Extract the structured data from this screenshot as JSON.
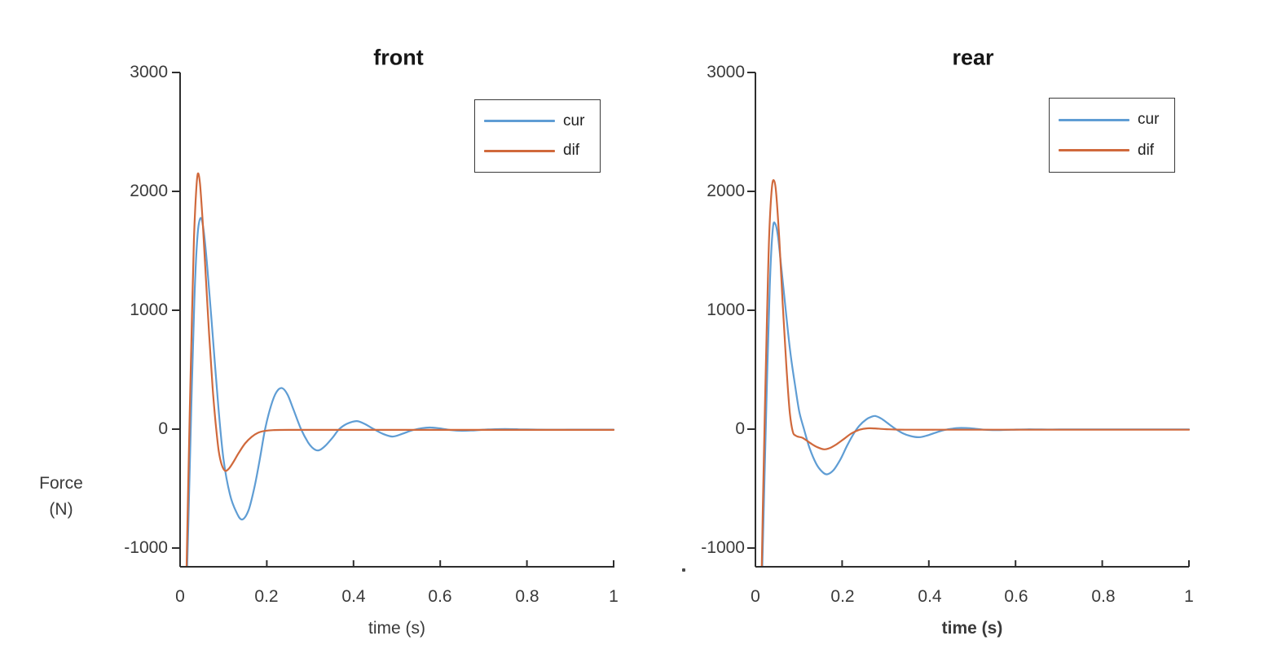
{
  "shared": {
    "ylabel_lines": [
      "Force",
      "(N)"
    ],
    "axis_color": "#2e2e2e",
    "background": "#ffffff"
  },
  "chart_data": [
    {
      "type": "line",
      "title": "front",
      "xlabel": "time (s)",
      "ylabel": "Force (N)",
      "xlim": [
        0,
        1
      ],
      "ylim": [
        -1160,
        3000
      ],
      "grid": false,
      "legend_position": "upper right",
      "x_tick_labels": [
        "0",
        "0.2",
        "0.4",
        "0.6",
        "0.8",
        "1"
      ],
      "y_tick_labels": [
        "3000",
        "2000",
        "1000",
        "0",
        "-1000"
      ],
      "series": [
        {
          "name": "cur",
          "color": "#5F9DD4",
          "points": [
            [
              0.012,
              -1700
            ],
            [
              0.019,
              -800
            ],
            [
              0.026,
              200
            ],
            [
              0.033,
              1100
            ],
            [
              0.04,
              1620
            ],
            [
              0.047,
              1775
            ],
            [
              0.054,
              1680
            ],
            [
              0.063,
              1350
            ],
            [
              0.075,
              800
            ],
            [
              0.088,
              200
            ],
            [
              0.1,
              -250
            ],
            [
              0.115,
              -550
            ],
            [
              0.13,
              -700
            ],
            [
              0.143,
              -760
            ],
            [
              0.158,
              -680
            ],
            [
              0.172,
              -480
            ],
            [
              0.185,
              -230
            ],
            [
              0.196,
              0
            ],
            [
              0.21,
              200
            ],
            [
              0.222,
              310
            ],
            [
              0.235,
              345
            ],
            [
              0.248,
              290
            ],
            [
              0.262,
              160
            ],
            [
              0.279,
              0
            ],
            [
              0.295,
              -110
            ],
            [
              0.308,
              -165
            ],
            [
              0.32,
              -178
            ],
            [
              0.335,
              -140
            ],
            [
              0.352,
              -70
            ],
            [
              0.367,
              0
            ],
            [
              0.385,
              45
            ],
            [
              0.407,
              68
            ],
            [
              0.425,
              45
            ],
            [
              0.447,
              0
            ],
            [
              0.468,
              -40
            ],
            [
              0.49,
              -62
            ],
            [
              0.512,
              -40
            ],
            [
              0.535,
              -10
            ],
            [
              0.558,
              8
            ],
            [
              0.578,
              14
            ],
            [
              0.6,
              6
            ],
            [
              0.625,
              -8
            ],
            [
              0.65,
              -14
            ],
            [
              0.68,
              -10
            ],
            [
              0.71,
              -3
            ],
            [
              0.75,
              1
            ],
            [
              0.8,
              -3
            ],
            [
              0.85,
              -5
            ],
            [
              0.9,
              -4
            ],
            [
              0.95,
              -4
            ],
            [
              1.0,
              -4
            ]
          ]
        },
        {
          "name": "dif",
          "color": "#D0693C",
          "points": [
            [
              0.012,
              -1700
            ],
            [
              0.017,
              -800
            ],
            [
              0.022,
              100
            ],
            [
              0.027,
              900
            ],
            [
              0.032,
              1600
            ],
            [
              0.037,
              2000
            ],
            [
              0.041,
              2150
            ],
            [
              0.046,
              2060
            ],
            [
              0.052,
              1750
            ],
            [
              0.059,
              1300
            ],
            [
              0.067,
              800
            ],
            [
              0.075,
              350
            ],
            [
              0.082,
              50
            ],
            [
              0.089,
              -180
            ],
            [
              0.096,
              -300
            ],
            [
              0.104,
              -350
            ],
            [
              0.113,
              -330
            ],
            [
              0.124,
              -270
            ],
            [
              0.136,
              -195
            ],
            [
              0.15,
              -120
            ],
            [
              0.165,
              -65
            ],
            [
              0.18,
              -30
            ],
            [
              0.195,
              -15
            ],
            [
              0.215,
              -8
            ],
            [
              0.25,
              -6
            ],
            [
              0.3,
              -6
            ],
            [
              0.4,
              -6
            ],
            [
              0.5,
              -6
            ],
            [
              0.6,
              -6
            ],
            [
              0.7,
              -6
            ],
            [
              0.8,
              -6
            ],
            [
              0.9,
              -6
            ],
            [
              1.0,
              -6
            ]
          ]
        }
      ]
    },
    {
      "type": "line",
      "title": "rear",
      "xlabel": "time (s)",
      "ylabel": "Force (N)",
      "xlim": [
        0,
        1
      ],
      "ylim": [
        -1160,
        3000
      ],
      "grid": false,
      "legend_position": "upper right",
      "x_tick_labels": [
        "0",
        "0.2",
        "0.4",
        "0.6",
        "0.8",
        "1"
      ],
      "y_tick_labels": [
        "3000",
        "2000",
        "1000",
        "0",
        "-1000"
      ],
      "series": [
        {
          "name": "cur",
          "color": "#5F9DD4",
          "points": [
            [
              0.012,
              -1700
            ],
            [
              0.019,
              -700
            ],
            [
              0.026,
              300
            ],
            [
              0.033,
              1200
            ],
            [
              0.04,
              1680
            ],
            [
              0.046,
              1725
            ],
            [
              0.052,
              1620
            ],
            [
              0.06,
              1350
            ],
            [
              0.07,
              1000
            ],
            [
              0.08,
              660
            ],
            [
              0.091,
              380
            ],
            [
              0.101,
              150
            ],
            [
              0.112,
              0
            ],
            [
              0.125,
              -160
            ],
            [
              0.14,
              -290
            ],
            [
              0.153,
              -355
            ],
            [
              0.165,
              -380
            ],
            [
              0.18,
              -345
            ],
            [
              0.196,
              -255
            ],
            [
              0.212,
              -135
            ],
            [
              0.228,
              -30
            ],
            [
              0.24,
              30
            ],
            [
              0.255,
              80
            ],
            [
              0.268,
              105
            ],
            [
              0.277,
              110
            ],
            [
              0.29,
              90
            ],
            [
              0.305,
              50
            ],
            [
              0.322,
              5
            ],
            [
              0.34,
              -35
            ],
            [
              0.358,
              -58
            ],
            [
              0.377,
              -68
            ],
            [
              0.395,
              -55
            ],
            [
              0.415,
              -30
            ],
            [
              0.435,
              -8
            ],
            [
              0.455,
              5
            ],
            [
              0.475,
              10
            ],
            [
              0.495,
              8
            ],
            [
              0.515,
              0
            ],
            [
              0.535,
              -6
            ],
            [
              0.56,
              -8
            ],
            [
              0.59,
              -5
            ],
            [
              0.625,
              -2
            ],
            [
              0.66,
              -3
            ],
            [
              0.7,
              -3
            ],
            [
              0.75,
              -3
            ],
            [
              0.8,
              -3
            ],
            [
              0.9,
              -3
            ],
            [
              1.0,
              -3
            ]
          ]
        },
        {
          "name": "dif",
          "color": "#D0693C",
          "points": [
            [
              0.012,
              -1700
            ],
            [
              0.017,
              -700
            ],
            [
              0.022,
              200
            ],
            [
              0.027,
              1000
            ],
            [
              0.032,
              1650
            ],
            [
              0.038,
              2030
            ],
            [
              0.043,
              2090
            ],
            [
              0.048,
              1980
            ],
            [
              0.055,
              1600
            ],
            [
              0.063,
              1050
            ],
            [
              0.071,
              550
            ],
            [
              0.079,
              150
            ],
            [
              0.086,
              -20
            ],
            [
              0.093,
              -55
            ],
            [
              0.1,
              -65
            ],
            [
              0.108,
              -72
            ],
            [
              0.118,
              -95
            ],
            [
              0.13,
              -125
            ],
            [
              0.143,
              -152
            ],
            [
              0.159,
              -170
            ],
            [
              0.172,
              -158
            ],
            [
              0.188,
              -125
            ],
            [
              0.205,
              -80
            ],
            [
              0.222,
              -35
            ],
            [
              0.24,
              -5
            ],
            [
              0.258,
              7
            ],
            [
              0.275,
              6
            ],
            [
              0.3,
              0
            ],
            [
              0.33,
              -4
            ],
            [
              0.37,
              -5
            ],
            [
              0.42,
              -5
            ],
            [
              0.5,
              -5
            ],
            [
              0.6,
              -5
            ],
            [
              0.7,
              -5
            ],
            [
              0.8,
              -5
            ],
            [
              0.9,
              -5
            ],
            [
              1.0,
              -5
            ]
          ]
        }
      ]
    }
  ]
}
